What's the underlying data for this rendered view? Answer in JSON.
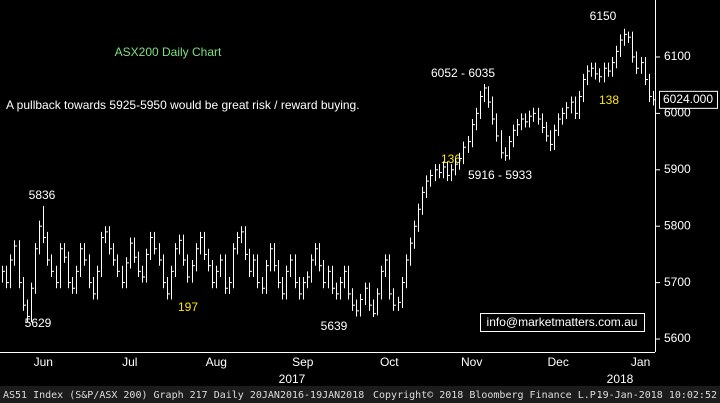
{
  "chart_data": {
    "type": "hlc-bar",
    "title": "ASX200 Daily Chart",
    "subtitle": "A pullback towards 5925-5950 would be great risk / reward buying.",
    "categories": [
      null,
      null,
      null,
      null,
      null,
      null,
      null,
      null,
      null,
      null,
      "Jun",
      null,
      null,
      null,
      null,
      null,
      null,
      null,
      null,
      null,
      null,
      null,
      null,
      null,
      null,
      null,
      null,
      null,
      null,
      null,
      null,
      "Jul",
      null,
      null,
      null,
      null,
      null,
      null,
      null,
      null,
      null,
      null,
      null,
      null,
      null,
      null,
      null,
      null,
      null,
      null,
      null,
      null,
      "Aug",
      null,
      null,
      null,
      null,
      null,
      null,
      null,
      null,
      null,
      null,
      null,
      null,
      null,
      null,
      null,
      null,
      null,
      null,
      null,
      null,
      "Sep",
      null,
      null,
      null,
      null,
      null,
      null,
      null,
      null,
      null,
      null,
      null,
      null,
      null,
      null,
      null,
      null,
      null,
      null,
      null,
      null,
      "Oct",
      null,
      null,
      null,
      null,
      null,
      null,
      null,
      null,
      null,
      null,
      null,
      null,
      null,
      null,
      null,
      null,
      null,
      null,
      null,
      "Nov",
      null,
      null,
      null,
      null,
      null,
      null,
      null,
      null,
      null,
      null,
      null,
      null,
      null,
      null,
      null,
      null,
      null,
      null,
      null,
      null,
      "Dec",
      null,
      null,
      null,
      null,
      null,
      null,
      null,
      null,
      null,
      null,
      null,
      null,
      null,
      null,
      null,
      null,
      null,
      null,
      null,
      "Jan",
      null,
      null,
      null
    ],
    "year_labels": [
      "2017",
      "2018"
    ],
    "series": [
      {
        "color": "#ffffff",
        "values": [
          5720,
          5700,
          5740,
          5765,
          5700,
          5660,
          5640,
          5690,
          5760,
          5800,
          5780,
          5740,
          5720,
          5700,
          5760,
          5745,
          5700,
          5690,
          5720,
          5760,
          5740,
          5700,
          5680,
          5720,
          5780,
          5790,
          5760,
          5740,
          5720,
          5700,
          5735,
          5770,
          5745,
          5720,
          5710,
          5750,
          5780,
          5760,
          5740,
          5700,
          5680,
          5720,
          5760,
          5775,
          5740,
          5710,
          5730,
          5760,
          5780,
          5750,
          5730,
          5700,
          5720,
          5740,
          5690,
          5700,
          5760,
          5780,
          5790,
          5750,
          5720,
          5740,
          5700,
          5690,
          5730,
          5760,
          5730,
          5700,
          5680,
          5720,
          5740,
          5700,
          5680,
          5700,
          5710,
          5740,
          5760,
          5730,
          5700,
          5720,
          5690,
          5680,
          5700,
          5720,
          5680,
          5660,
          5650,
          5670,
          5690,
          5660,
          5645,
          5680,
          5720,
          5740,
          5680,
          5660,
          5665,
          5700,
          5740,
          5770,
          5800,
          5830,
          5860,
          5880,
          5890,
          5900,
          5895,
          5905,
          5890,
          5900,
          5910,
          5920,
          5940,
          5950,
          5980,
          6000,
          6030,
          6045,
          6020,
          5990,
          5960,
          5930,
          5925,
          5950,
          5970,
          5980,
          5990,
          5985,
          5995,
          6000,
          5990,
          5975,
          5960,
          5945,
          5970,
          5990,
          6000,
          6010,
          6020,
          6000,
          6030,
          6060,
          6075,
          6080,
          6070,
          6065,
          6080,
          6075,
          6090,
          6110,
          6130,
          6140,
          6135,
          6100,
          6080,
          6090,
          6060,
          6030,
          6024
        ],
        "high": [
          5730,
          5730,
          5750,
          5775,
          5775,
          5710,
          5670,
          5700,
          5770,
          5810,
          5836,
          5790,
          5750,
          5730,
          5770,
          5770,
          5755,
          5710,
          5730,
          5770,
          5770,
          5750,
          5710,
          5730,
          5790,
          5800,
          5800,
          5770,
          5750,
          5730,
          5745,
          5780,
          5780,
          5755,
          5730,
          5760,
          5790,
          5790,
          5770,
          5750,
          5710,
          5730,
          5770,
          5785,
          5785,
          5750,
          5740,
          5770,
          5790,
          5790,
          5760,
          5740,
          5730,
          5750,
          5750,
          5710,
          5770,
          5790,
          5800,
          5800,
          5760,
          5750,
          5750,
          5710,
          5740,
          5770,
          5770,
          5740,
          5710,
          5730,
          5750,
          5750,
          5710,
          5710,
          5720,
          5750,
          5770,
          5770,
          5740,
          5730,
          5730,
          5700,
          5710,
          5730,
          5730,
          5690,
          5670,
          5680,
          5700,
          5700,
          5670,
          5690,
          5730,
          5750,
          5750,
          5690,
          5675,
          5710,
          5750,
          5780,
          5810,
          5840,
          5870,
          5890,
          5900,
          5910,
          5910,
          5915,
          5915,
          5910,
          5920,
          5930,
          5950,
          5960,
          5990,
          6010,
          6040,
          6052,
          6048,
          6030,
          6000,
          5970,
          5940,
          5960,
          5980,
          5990,
          6000,
          6000,
          6005,
          6010,
          6010,
          6000,
          5985,
          5970,
          5980,
          6000,
          6010,
          6020,
          6030,
          6030,
          6040,
          6070,
          6085,
          6090,
          6090,
          6080,
          6090,
          6090,
          6100,
          6120,
          6140,
          6150,
          6145,
          6145,
          6110,
          6100,
          6100,
          6070,
          6040
        ],
        "low": [
          5700,
          5690,
          5690,
          5730,
          5690,
          5650,
          5629,
          5630,
          5680,
          5750,
          5770,
          5730,
          5710,
          5690,
          5690,
          5735,
          5690,
          5680,
          5680,
          5710,
          5730,
          5690,
          5670,
          5670,
          5710,
          5770,
          5750,
          5730,
          5710,
          5690,
          5690,
          5725,
          5735,
          5710,
          5700,
          5700,
          5740,
          5750,
          5730,
          5690,
          5670,
          5670,
          5710,
          5750,
          5730,
          5700,
          5700,
          5720,
          5750,
          5740,
          5720,
          5690,
          5690,
          5710,
          5680,
          5680,
          5690,
          5750,
          5770,
          5740,
          5710,
          5710,
          5690,
          5680,
          5680,
          5720,
          5720,
          5690,
          5670,
          5670,
          5710,
          5690,
          5670,
          5670,
          5690,
          5700,
          5730,
          5720,
          5690,
          5690,
          5680,
          5670,
          5670,
          5690,
          5670,
          5650,
          5640,
          5640,
          5660,
          5650,
          5639,
          5642,
          5670,
          5710,
          5670,
          5650,
          5650,
          5655,
          5690,
          5730,
          5760,
          5790,
          5820,
          5850,
          5870,
          5880,
          5885,
          5885,
          5880,
          5880,
          5890,
          5900,
          5910,
          5930,
          5940,
          5970,
          5990,
          6020,
          6010,
          5980,
          5950,
          5920,
          5916,
          5918,
          5940,
          5960,
          5970,
          5975,
          5975,
          5985,
          5980,
          5965,
          5950,
          5933,
          5935,
          5960,
          5980,
          5990,
          6000,
          5990,
          5990,
          6020,
          6050,
          6065,
          6060,
          6055,
          6055,
          6065,
          6065,
          6080,
          6100,
          6120,
          6125,
          6090,
          6070,
          6070,
          6050,
          6020,
          6014
        ]
      }
    ],
    "last_price": {
      "value": 6024,
      "label": "6024.000"
    },
    "ylim": [
      5577,
      6201
    ],
    "yticks": [
      5600,
      5700,
      5800,
      5900,
      6000,
      6100
    ],
    "annotations": [
      {
        "text": "5836",
        "color": "#ffffff"
      },
      {
        "text": "5629",
        "color": "#ffffff"
      },
      {
        "text": "197",
        "color": "#ffe800"
      },
      {
        "text": "5639",
        "color": "#ffffff"
      },
      {
        "text": "6052 - 6035",
        "color": "#ffffff"
      },
      {
        "text": "136",
        "color": "#ffe800"
      },
      {
        "text": "5916 - 5933",
        "color": "#ffffff"
      },
      {
        "text": "6150",
        "color": "#ffffff"
      },
      {
        "text": "138",
        "color": "#ffe800"
      }
    ],
    "watermark": "info@marketmatters.com.au",
    "footer": {
      "left": "AS51 Index (S&P/ASX 200) Graph 217  Daily 20JAN2016-19JAN2018",
      "center": "Copyright© 2018 Bloomberg Finance L.P.",
      "right": "19-Jan-2018 10:02:52"
    }
  }
}
